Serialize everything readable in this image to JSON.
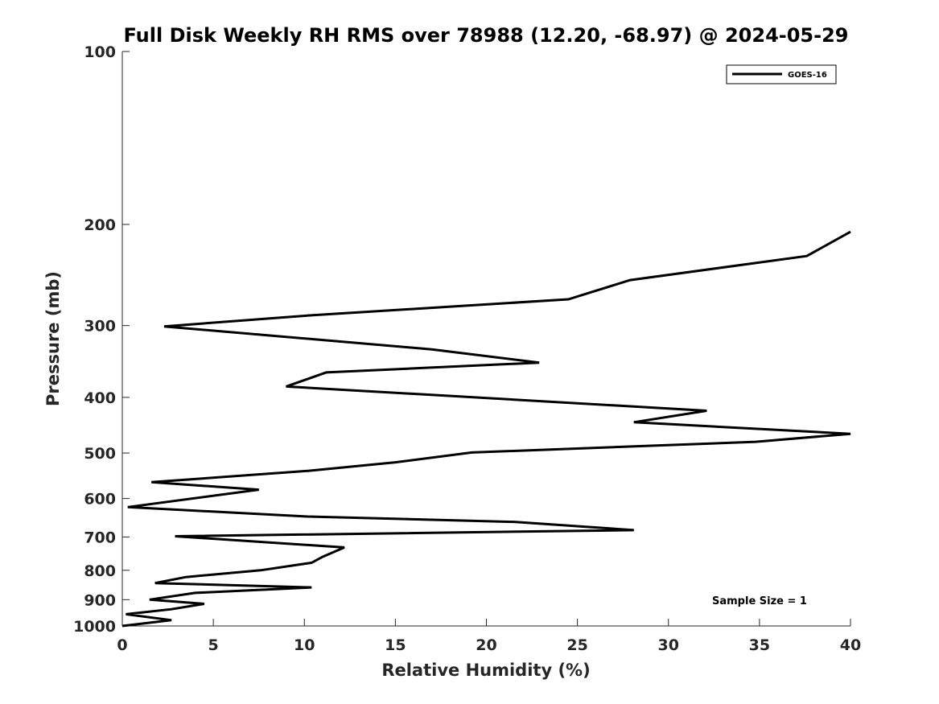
{
  "chart_data": {
    "type": "line",
    "title": "Full Disk Weekly RH RMS over 78988 (12.20, -68.97) @ 2024-05-29",
    "xlabel": "Relative Humidity (%)",
    "ylabel": "Pressure (mb)",
    "xlim": [
      0,
      40
    ],
    "ylim": [
      100,
      1000
    ],
    "y_scale": "log",
    "y_reversed": true,
    "grid": false,
    "legend_position": "top-right",
    "x_ticks": [
      0,
      5,
      10,
      15,
      20,
      25,
      30,
      35,
      40
    ],
    "y_ticks": [
      100,
      200,
      300,
      400,
      500,
      600,
      700,
      800,
      900,
      1000
    ],
    "series": [
      {
        "name": "GOES-16",
        "color": "#000000",
        "points": [
          {
            "x": 40.0,
            "y": 206
          },
          {
            "x": 37.6,
            "y": 227
          },
          {
            "x": 27.9,
            "y": 250
          },
          {
            "x": 24.5,
            "y": 270
          },
          {
            "x": 10.3,
            "y": 288
          },
          {
            "x": 2.3,
            "y": 301
          },
          {
            "x": 17.0,
            "y": 330
          },
          {
            "x": 22.9,
            "y": 348
          },
          {
            "x": 11.2,
            "y": 362
          },
          {
            "x": 9.0,
            "y": 383
          },
          {
            "x": 32.1,
            "y": 422
          },
          {
            "x": 28.1,
            "y": 442
          },
          {
            "x": 40.0,
            "y": 463
          },
          {
            "x": 34.8,
            "y": 478
          },
          {
            "x": 19.2,
            "y": 499
          },
          {
            "x": 15.0,
            "y": 519
          },
          {
            "x": 10.2,
            "y": 537
          },
          {
            "x": 1.6,
            "y": 562
          },
          {
            "x": 7.5,
            "y": 579
          },
          {
            "x": 0.3,
            "y": 621
          },
          {
            "x": 10.2,
            "y": 645
          },
          {
            "x": 21.6,
            "y": 659
          },
          {
            "x": 28.1,
            "y": 681
          },
          {
            "x": 2.9,
            "y": 698
          },
          {
            "x": 12.2,
            "y": 730
          },
          {
            "x": 11.0,
            "y": 758
          },
          {
            "x": 10.4,
            "y": 776
          },
          {
            "x": 7.6,
            "y": 800
          },
          {
            "x": 3.5,
            "y": 822
          },
          {
            "x": 1.8,
            "y": 842
          },
          {
            "x": 10.4,
            "y": 857
          },
          {
            "x": 4.0,
            "y": 876
          },
          {
            "x": 1.5,
            "y": 900
          },
          {
            "x": 4.5,
            "y": 915
          },
          {
            "x": 2.7,
            "y": 935
          },
          {
            "x": 0.2,
            "y": 954
          },
          {
            "x": 2.7,
            "y": 977
          },
          {
            "x": 0.0,
            "y": 1000
          }
        ]
      }
    ],
    "annotation": "Sample Size = 1"
  }
}
